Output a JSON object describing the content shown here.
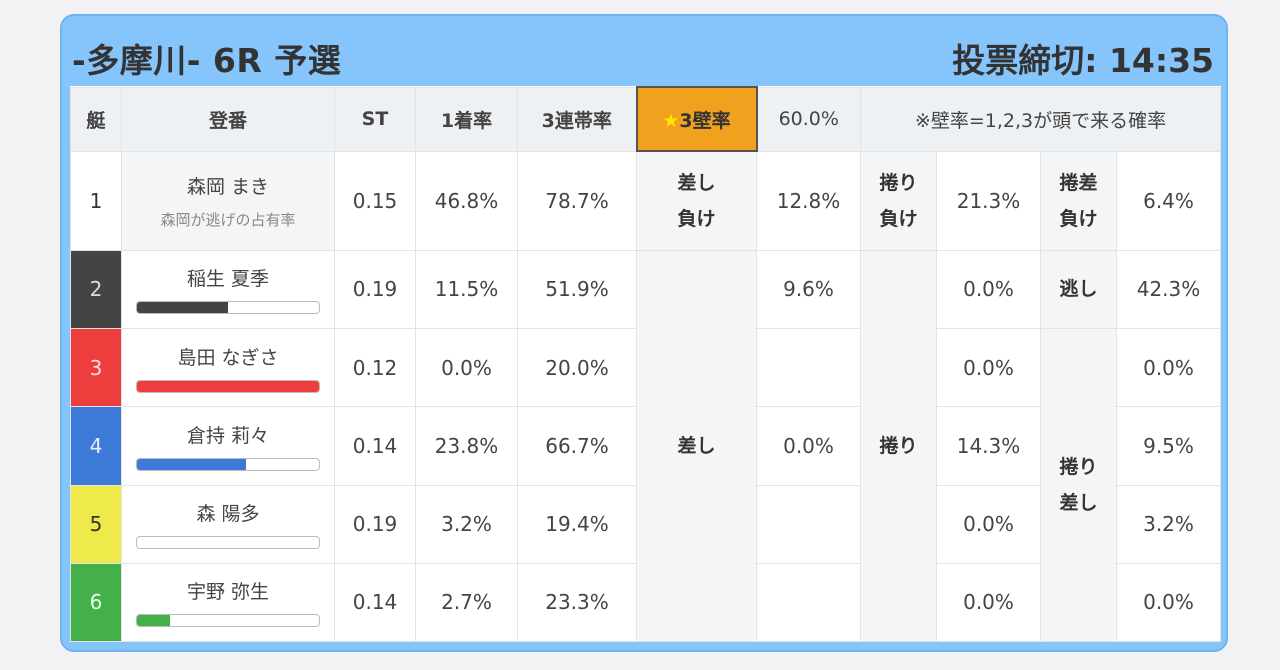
{
  "header": {
    "title": "-多摩川- 6R 予選",
    "deadline": "投票締切: 14:35"
  },
  "columns": {
    "boat": "艇",
    "racer": "登番",
    "st": "ST",
    "win_rate": "1着率",
    "top3_rate": "3連帯率",
    "wall_rate_label": "3壁率",
    "wall_rate_value": "60.0%",
    "note": "※壁率=1,2,3が頭で来る確率"
  },
  "rows": [
    {
      "boat": "1",
      "name": "森岡 まき",
      "sub": "森岡が逃げの占有率",
      "st": "0.15",
      "win": "46.8%",
      "top3": "78.7%",
      "v1": "12.8%",
      "v2": "21.3%",
      "v3": "6.4%",
      "bar": null,
      "color": "#ffffff"
    },
    {
      "boat": "2",
      "name": "稲生 夏季",
      "st": "0.19",
      "win": "11.5%",
      "top3": "51.9%",
      "v1": "9.6%",
      "v2": "0.0%",
      "v3": "42.3%",
      "bar": 0.5,
      "color": "#444444"
    },
    {
      "boat": "3",
      "name": "島田 なぎさ",
      "st": "0.12",
      "win": "0.0%",
      "top3": "20.0%",
      "v1": "",
      "v2": "0.0%",
      "v3": "0.0%",
      "bar": 1.0,
      "color": "#ee3d3d"
    },
    {
      "boat": "4",
      "name": "倉持 莉々",
      "st": "0.14",
      "win": "23.8%",
      "top3": "66.7%",
      "v1": "0.0%",
      "v2": "14.3%",
      "v3": "9.5%",
      "bar": 0.6,
      "color": "#3d7ad8"
    },
    {
      "boat": "5",
      "name": "森 陽多",
      "st": "0.19",
      "win": "3.2%",
      "top3": "19.4%",
      "v1": "",
      "v2": "0.0%",
      "v3": "3.2%",
      "bar": 0.0,
      "color": "#eeea4c"
    },
    {
      "boat": "6",
      "name": "宇野 弥生",
      "st": "0.14",
      "win": "2.7%",
      "top3": "23.3%",
      "v1": "",
      "v2": "0.0%",
      "v3": "0.0%",
      "bar": 0.18,
      "color": "#44b04a"
    }
  ],
  "labels": {
    "r1_a": "差し",
    "r1_a2": "負け",
    "r1_b": "捲り",
    "r1_b2": "負け",
    "r1_c": "捲差",
    "r1_c2": "負け",
    "sashi": "差し",
    "makuri": "捲り",
    "nige": "逃し",
    "makurisashi_1": "捲り",
    "makurisashi_2": "差し"
  }
}
